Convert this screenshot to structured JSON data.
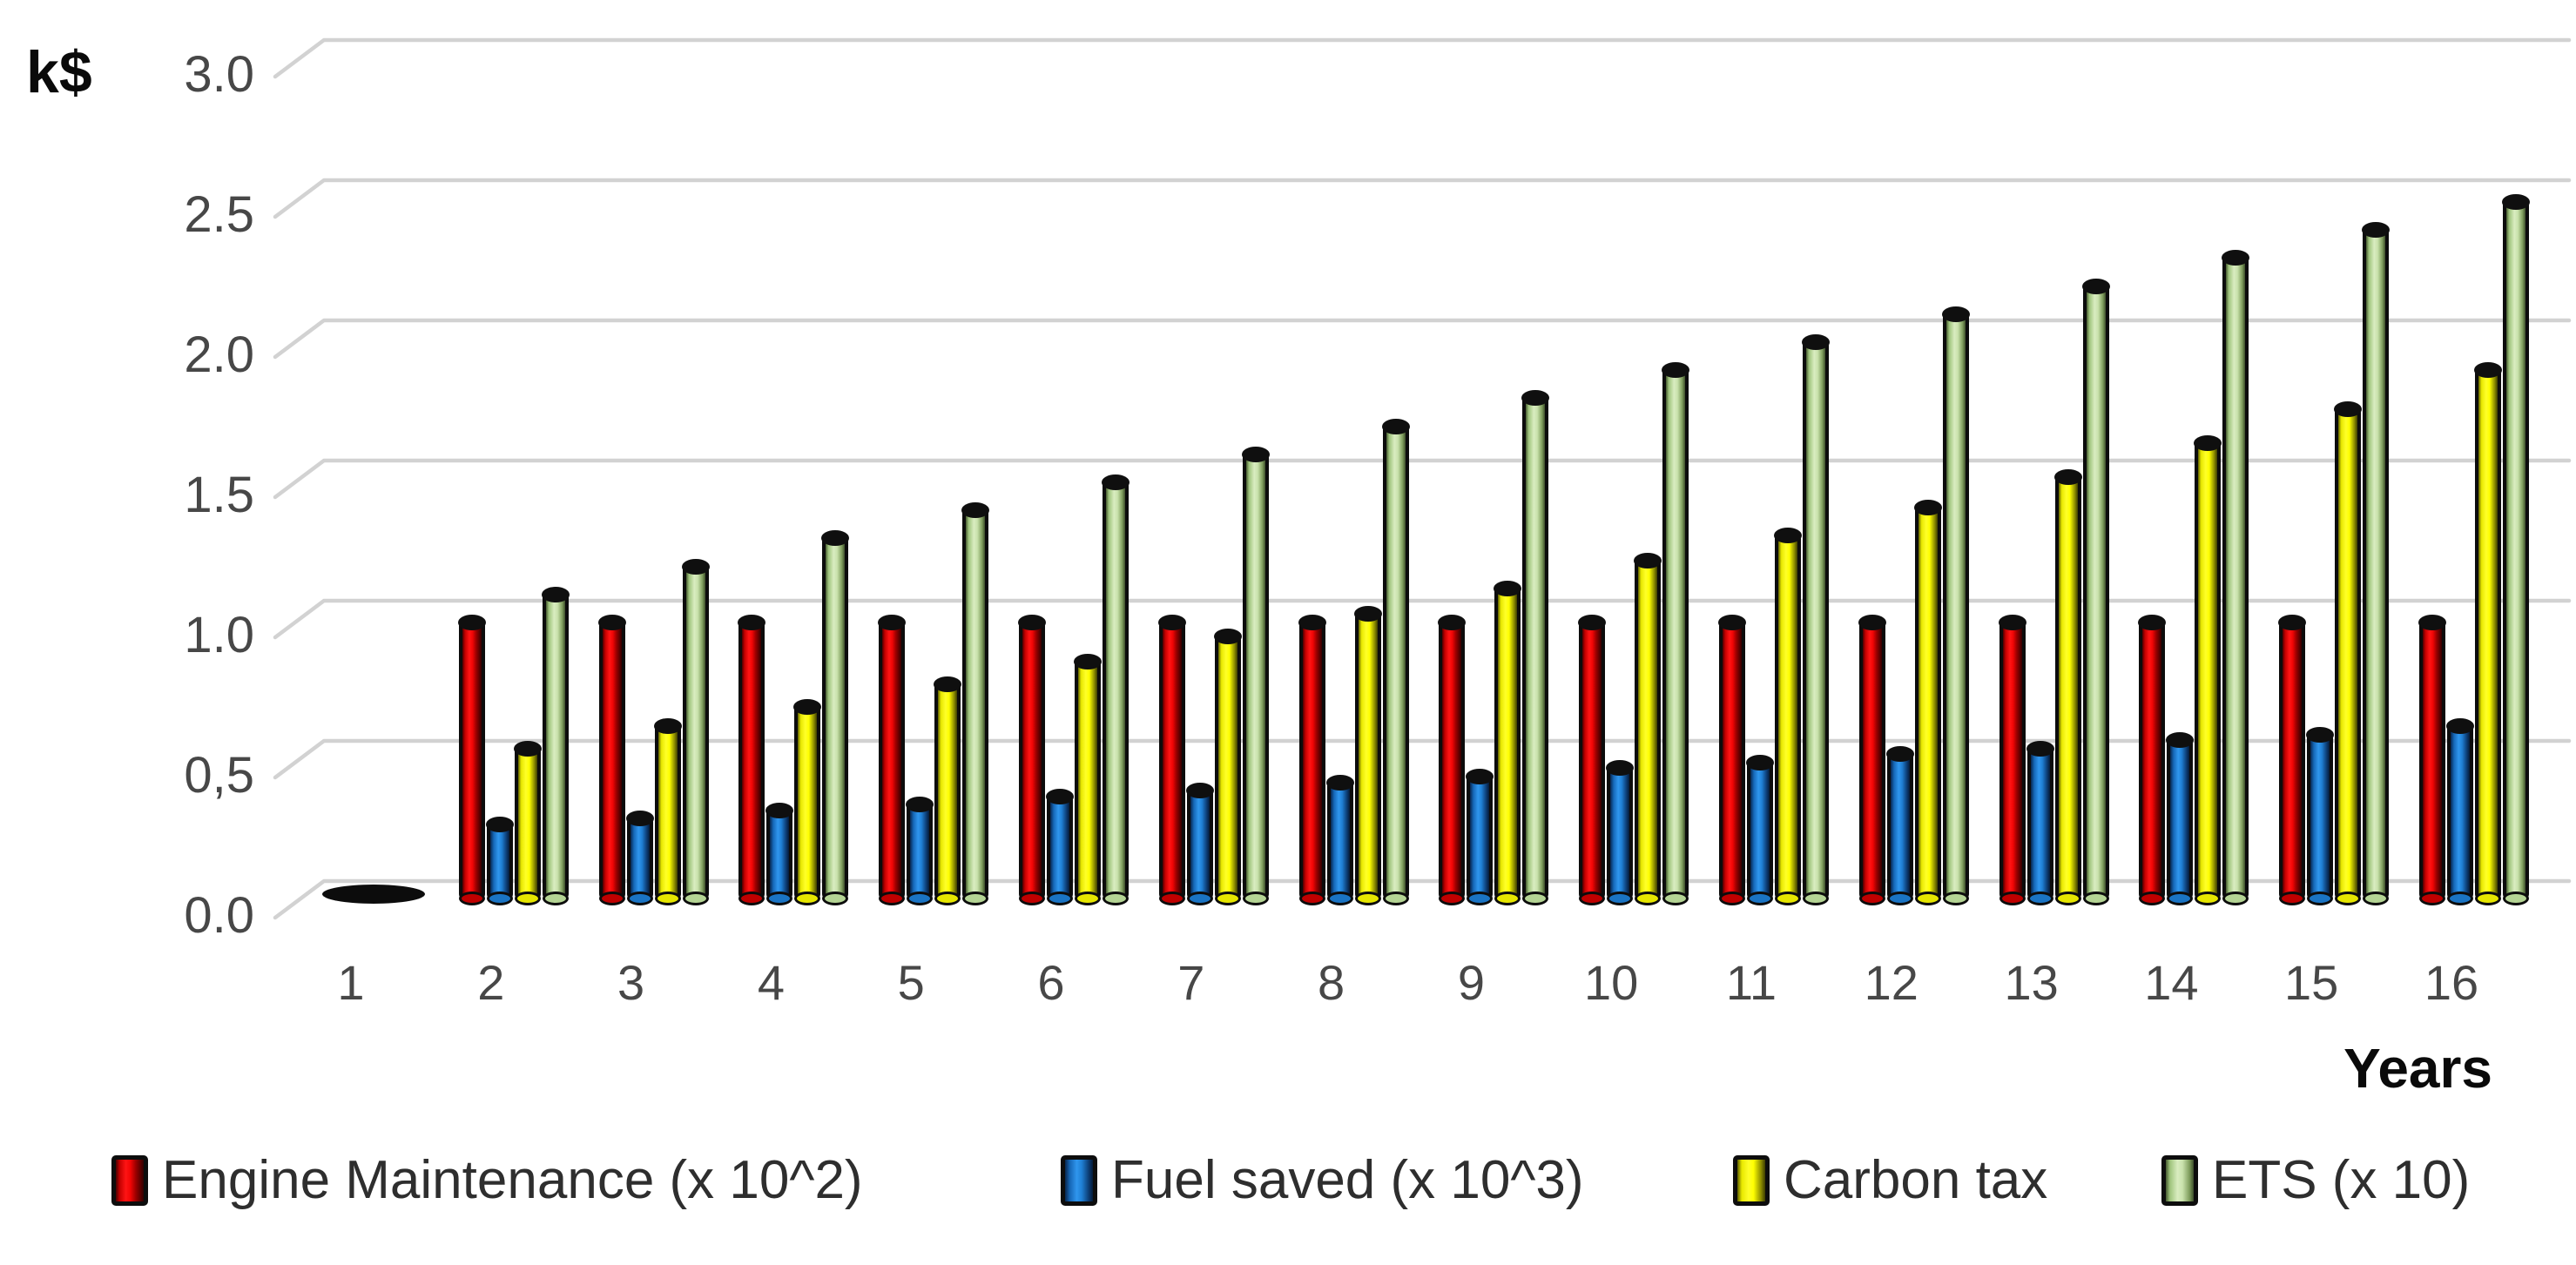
{
  "axes": {
    "y_title": "k$",
    "x_title": "Years"
  },
  "colors": {
    "engine_maintenance": "#EE1111",
    "fuel_saved": "#1F7FD4",
    "carbon_tax": "#FFFF00",
    "ets": "#C9E2AC",
    "gridline": "#D2D2D2",
    "tick_text": "#474747",
    "title_text": "#0A0A0A",
    "bar_outline": "#0C0C0C"
  },
  "chart_data": {
    "type": "bar",
    "title": "",
    "xlabel": "Years",
    "ylabel": "k$",
    "ylim": [
      0,
      3.0
    ],
    "ytick_step": 0.5,
    "ytick_labels": [
      "3.0",
      "2.5",
      "2.0",
      "1.5",
      "1.0",
      "0,5",
      "0.0"
    ],
    "grid": true,
    "legend_position": "bottom",
    "style": "3d-cylinder",
    "categories": [
      "1",
      "2",
      "3",
      "4",
      "5",
      "6",
      "7",
      "8",
      "9",
      "10",
      "11",
      "12",
      "13",
      "14",
      "15",
      "16"
    ],
    "series": [
      {
        "key": "engine-maintenance",
        "name": "Engine Maintenance (x 10^2)",
        "color": "#EE1111",
        "values": [
          0,
          1.0,
          1.0,
          1.0,
          1.0,
          1.0,
          1.0,
          1.0,
          1.0,
          1.0,
          1.0,
          1.0,
          1.0,
          1.0,
          1.0,
          1.0
        ]
      },
      {
        "key": "fuel-saved",
        "name": "Fuel saved (x 10^3)",
        "color": "#1F7FD4",
        "values": [
          0,
          0.28,
          0.3,
          0.33,
          0.35,
          0.38,
          0.4,
          0.43,
          0.45,
          0.48,
          0.5,
          0.53,
          0.55,
          0.58,
          0.6,
          0.63
        ]
      },
      {
        "key": "carbon-tax",
        "name": "Carbon tax",
        "color": "#FFFF00",
        "values": [
          0,
          0.55,
          0.63,
          0.7,
          0.78,
          0.86,
          0.95,
          1.03,
          1.12,
          1.22,
          1.31,
          1.41,
          1.52,
          1.64,
          1.76,
          1.9
        ]
      },
      {
        "key": "ets",
        "name": "ETS (x 10)",
        "color": "#C9E2AC",
        "values": [
          0,
          1.1,
          1.2,
          1.3,
          1.4,
          1.5,
          1.6,
          1.7,
          1.8,
          1.9,
          2.0,
          2.1,
          2.2,
          2.3,
          2.4,
          2.5
        ]
      }
    ]
  }
}
